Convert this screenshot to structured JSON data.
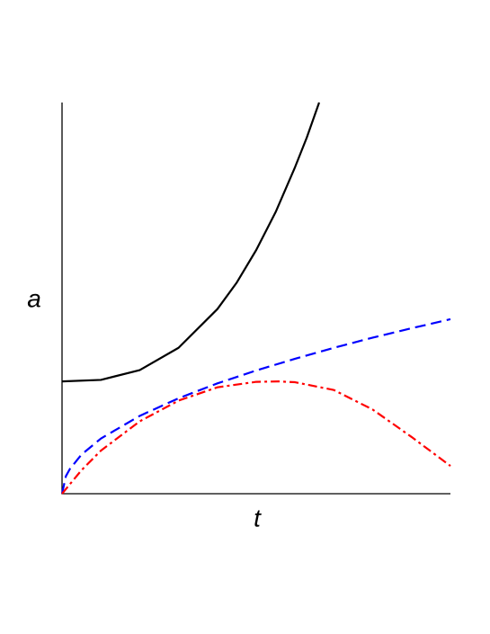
{
  "chart_data": {
    "type": "line",
    "xlabel": "t",
    "ylabel": "a",
    "xlim": [
      0,
      1
    ],
    "ylim": [
      0,
      1
    ],
    "series": [
      {
        "color": "#000000",
        "dash": "solid",
        "x": [
          0,
          0.1,
          0.2,
          0.3,
          0.4,
          0.45,
          0.5,
          0.55,
          0.6,
          0.63,
          0.662
        ],
        "values": [
          0.287,
          0.291,
          0.316,
          0.373,
          0.472,
          0.54,
          0.623,
          0.72,
          0.835,
          0.91,
          1.0
        ]
      },
      {
        "color": "#0000ff",
        "dash": "dashed",
        "x": [
          0,
          0.01,
          0.02,
          0.05,
          0.1,
          0.2,
          0.3,
          0.4,
          0.5,
          0.6,
          0.7,
          0.8,
          0.9,
          1
        ],
        "values": [
          0,
          0.045,
          0.063,
          0.1,
          0.141,
          0.199,
          0.244,
          0.282,
          0.315,
          0.345,
          0.373,
          0.399,
          0.423,
          0.446
        ]
      },
      {
        "color": "#ff0000",
        "dash": "dashdot",
        "x": [
          0,
          0.05,
          0.1,
          0.2,
          0.3,
          0.4,
          0.5,
          0.558,
          0.6,
          0.7,
          0.8,
          0.9,
          1
        ],
        "values": [
          0,
          0.06,
          0.11,
          0.185,
          0.238,
          0.272,
          0.286,
          0.287,
          0.285,
          0.265,
          0.215,
          0.145,
          0.071
        ]
      }
    ]
  }
}
